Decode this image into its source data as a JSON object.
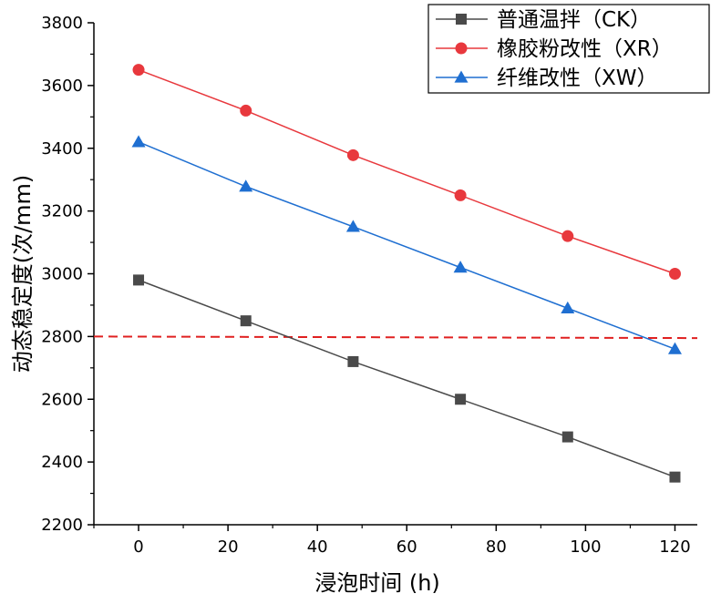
{
  "chart_data": {
    "type": "line",
    "xlabel": "浸泡时间 (h)",
    "ylabel": "动态稳定度(次/mm)",
    "xlim": [
      -10,
      125
    ],
    "ylim": [
      2200,
      3800
    ],
    "xticks": [
      0,
      20,
      40,
      60,
      80,
      100,
      120
    ],
    "yticks": [
      2200,
      2400,
      2600,
      2800,
      3000,
      3200,
      3400,
      3600,
      3800
    ],
    "x": [
      0,
      24,
      48,
      72,
      96,
      120
    ],
    "series": [
      {
        "name": "普通温拌（CK）",
        "color": "#4a4a4a",
        "marker": "square",
        "values": [
          2980,
          2850,
          2720,
          2600,
          2480,
          2352
        ]
      },
      {
        "name": "橡胶粉改性（XR）",
        "color": "#e8383d",
        "marker": "circle",
        "values": [
          3650,
          3520,
          3378,
          3250,
          3120,
          3000
        ]
      },
      {
        "name": "纤维改性（XW）",
        "color": "#1f6fd1",
        "marker": "triangle",
        "values": [
          3420,
          3278,
          3150,
          3020,
          2890,
          2760
        ]
      }
    ],
    "reference_line": {
      "y_start": 2800,
      "y_end": 2795,
      "x_start": -10,
      "x_end": 125,
      "color": "#e02020",
      "style": "dashed"
    },
    "legend_position": "top-right",
    "grid": false
  }
}
